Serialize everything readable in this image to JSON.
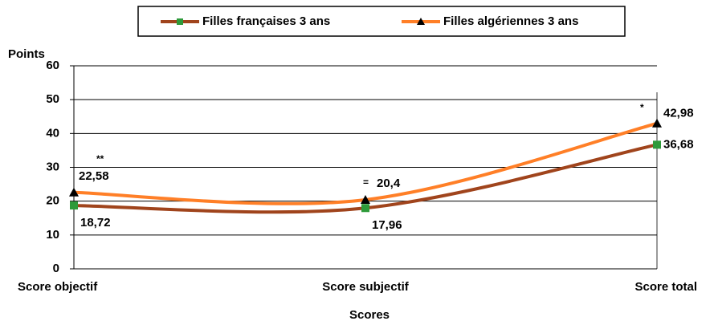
{
  "chart_data": {
    "type": "line",
    "y_label": "Points",
    "x_label": "Scores",
    "categories": [
      "Score objectif",
      "Score subjectif",
      "Score total"
    ],
    "series": [
      {
        "name": "Filles françaises 3 ans",
        "color": "#a0441c",
        "marker": "square",
        "marker_color": "#2e9a3a",
        "values": [
          18.72,
          17.96,
          36.68
        ],
        "value_labels": [
          "18,72",
          "17,96",
          "36,68"
        ]
      },
      {
        "name": "Filles algériennes 3 ans",
        "color": "#ff7f27",
        "marker": "triangle",
        "marker_color": "#000000",
        "values": [
          22.58,
          20.4,
          42.98
        ],
        "value_labels": [
          "22,58",
          "20,4",
          "42,98"
        ]
      }
    ],
    "annotations": [
      "**",
      "=",
      "*"
    ],
    "ylim": [
      0,
      60
    ],
    "yticks": [
      0,
      10,
      20,
      30,
      40,
      50,
      60
    ],
    "grid": true,
    "legend": "top"
  }
}
